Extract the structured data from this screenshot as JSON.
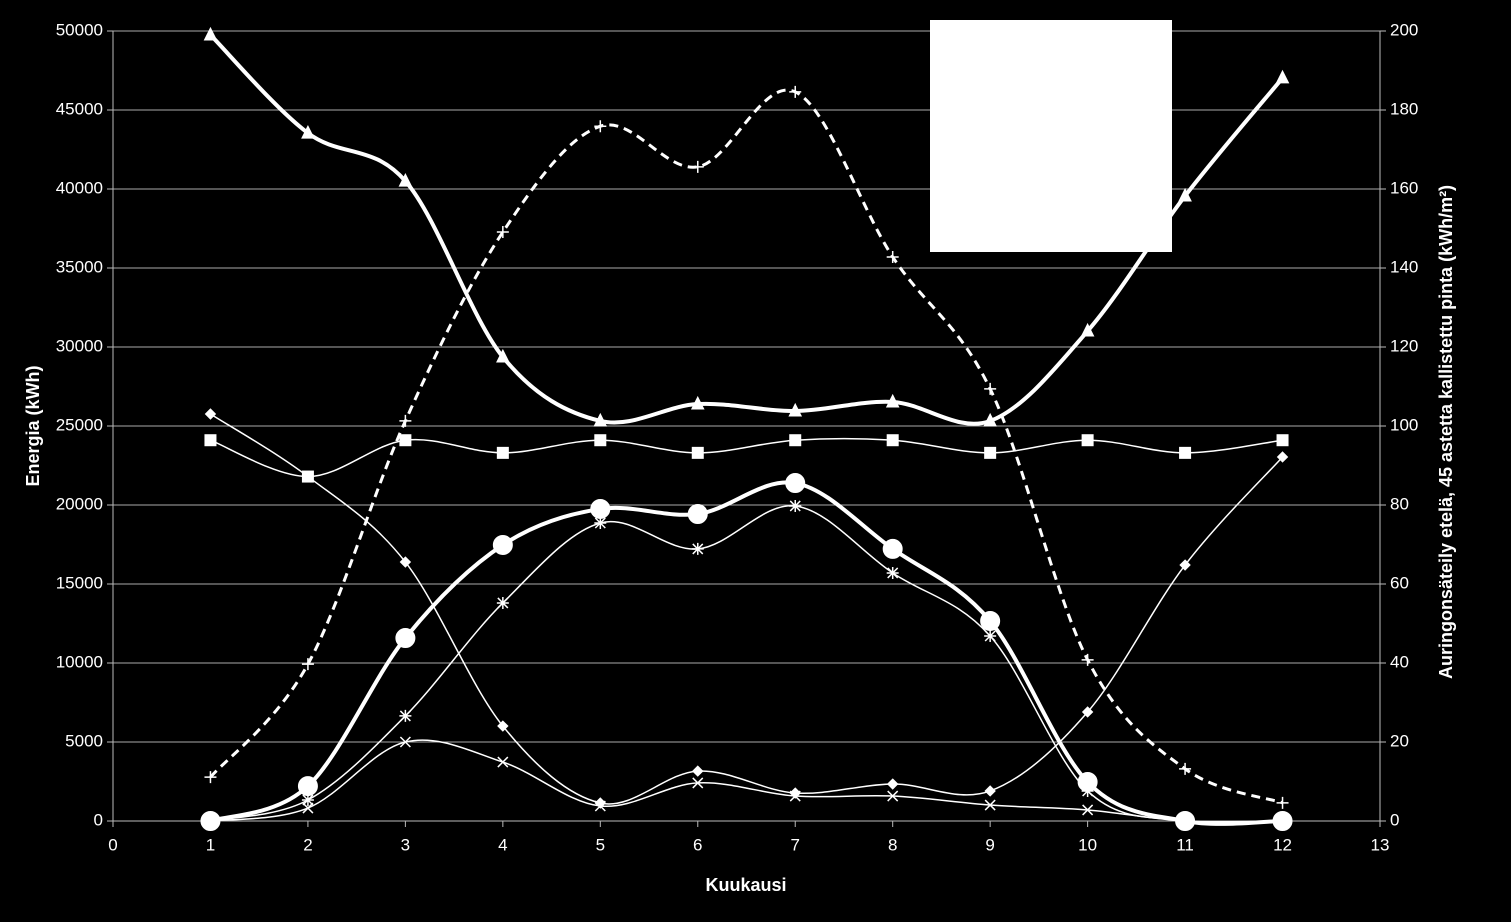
{
  "chart_data": {
    "type": "line",
    "x_label": "Kuukausi",
    "y_label": "Energia (kWh)",
    "y2_label": "Auringonsäteily etelä, 45 astetta kallistettu pinta (kWh/m²)",
    "x": [
      1,
      2,
      3,
      4,
      5,
      6,
      7,
      8,
      9,
      10,
      11,
      12
    ],
    "xlim": [
      0,
      13
    ],
    "xticks": [
      0,
      1,
      2,
      3,
      4,
      5,
      6,
      7,
      8,
      9,
      10,
      11,
      12,
      13
    ],
    "ylim": [
      0,
      50000
    ],
    "yticks": [
      0,
      5000,
      10000,
      15000,
      20000,
      25000,
      30000,
      35000,
      40000,
      45000,
      50000
    ],
    "y2lim": [
      0,
      200
    ],
    "y2ticks": [
      0,
      20,
      40,
      60,
      80,
      100,
      120,
      140,
      160,
      180,
      200
    ],
    "grid": true,
    "series": [
      {
        "color": "#ffffff",
        "marker": "triangle",
        "width": 4,
        "values": [
          49750,
          43540,
          40500,
          29370,
          25320,
          26390,
          25950,
          26520,
          25320,
          31010,
          39560,
          47030
        ]
      },
      {
        "color": "#ffffff",
        "marker": "square",
        "width": 1.5,
        "values": [
          24100,
          21800,
          24100,
          23300,
          24100,
          23300,
          24100,
          24100,
          23300,
          24100,
          23300,
          24100
        ]
      },
      {
        "color": "#ffffff",
        "marker": "diamond",
        "width": 1.5,
        "values": [
          25760,
          21800,
          16390,
          6010,
          1140,
          3160,
          1770,
          2340,
          1900,
          6900,
          16200,
          23040
        ]
      },
      {
        "color": "#ffffff",
        "marker": "circle",
        "width": 4,
        "values": [
          0,
          2210,
          11580,
          17470,
          19750,
          19430,
          21390,
          17220,
          12660,
          2470,
          0,
          0
        ]
      },
      {
        "color": "#ffffff",
        "marker": "asterisk",
        "width": 1.5,
        "values": [
          0,
          1330,
          6650,
          13800,
          18860,
          17220,
          19940,
          15700,
          11710,
          1900,
          0,
          0
        ]
      },
      {
        "color": "#ffffff",
        "marker": "x",
        "width": 1.5,
        "values": [
          0,
          820,
          5000,
          3730,
          950,
          2410,
          1580,
          1580,
          1010,
          700,
          0,
          0
        ]
      },
      {
        "color": "#ffffff",
        "marker": "plus",
        "width": 3,
        "dash": true,
        "axis": "y2",
        "values": [
          11.1,
          39.7,
          101.3,
          149.1,
          175.9,
          165.6,
          184.6,
          142.8,
          109.4,
          40.8,
          13.2,
          4.6
        ]
      }
    ]
  }
}
